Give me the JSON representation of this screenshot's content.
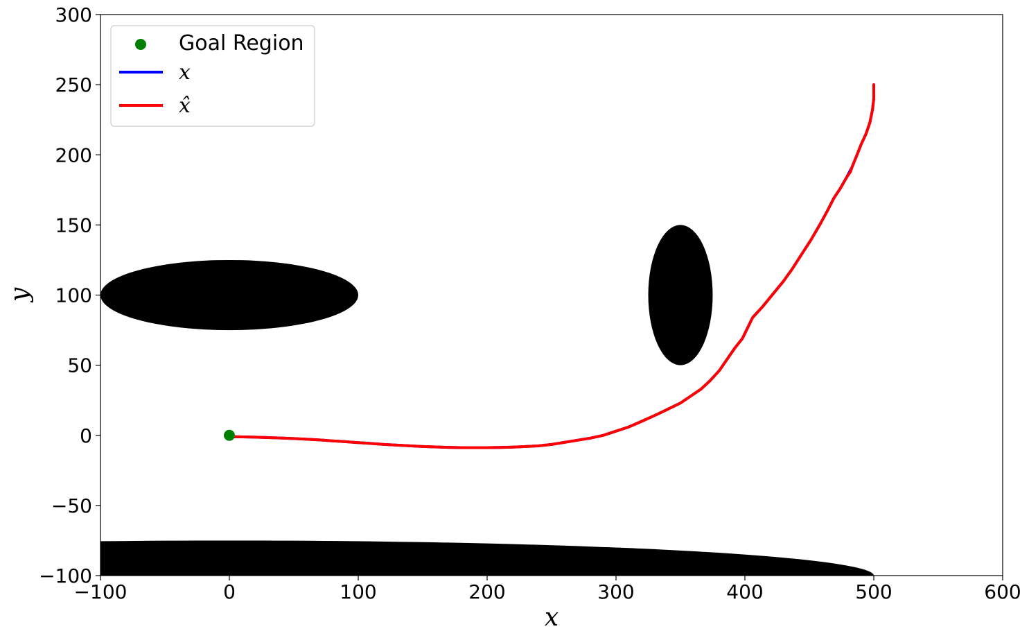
{
  "chart_data": {
    "type": "line",
    "xlabel": "x",
    "ylabel": "y",
    "xlim": [
      -100,
      600
    ],
    "ylim": [
      -100,
      300
    ],
    "x_ticks": [
      -100,
      0,
      100,
      200,
      300,
      400,
      500,
      600
    ],
    "y_ticks": [
      -100,
      -50,
      0,
      50,
      100,
      150,
      200,
      250,
      300
    ],
    "x_tick_labels": [
      "−100",
      "0",
      "100",
      "200",
      "300",
      "400",
      "500",
      "600"
    ],
    "y_tick_labels": [
      "−100",
      "−50",
      "0",
      "50",
      "100",
      "150",
      "200",
      "250",
      "300"
    ],
    "grid": false,
    "legend_position": "top-left",
    "legend": [
      {
        "label": "Goal Region",
        "marker": "dot",
        "color": "#008000"
      },
      {
        "label": "x",
        "marker": "line",
        "color": "#0000ff"
      },
      {
        "label": "x̂",
        "marker": "line",
        "color": "#ff0000"
      }
    ],
    "obstacles": [
      {
        "shape": "ellipse",
        "center": [
          0,
          100
        ],
        "radius_x": 100,
        "radius_y": 25,
        "color": "#000000"
      },
      {
        "shape": "ellipse",
        "center": [
          350,
          100
        ],
        "radius_x": 25,
        "radius_y": 50,
        "color": "#000000"
      },
      {
        "shape": "ellipse",
        "center": [
          0,
          -100
        ],
        "radius_x": 500,
        "radius_y": 25,
        "color": "#000000"
      }
    ],
    "goal": {
      "x": 0,
      "y": 0,
      "color": "#008000"
    },
    "series": [
      {
        "name": "x",
        "color": "#0000ff",
        "x": [
          500,
          500,
          499,
          497,
          494,
          490,
          487,
          483,
          479,
          474,
          469,
          464,
          458,
          451,
          444,
          437,
          430,
          422,
          414,
          406,
          398,
          392,
          386,
          380,
          373,
          366,
          358,
          350,
          341,
          332,
          320,
          310,
          300,
          290,
          280,
          270,
          260,
          250,
          240,
          230,
          220,
          210,
          200,
          190,
          180,
          170,
          160,
          150,
          140,
          130,
          120,
          110,
          100,
          90,
          80,
          70,
          60,
          50,
          40,
          30,
          20,
          10,
          3
        ],
        "y": [
          250,
          240,
          232,
          223,
          215,
          207,
          200,
          191,
          184,
          176,
          169,
          160,
          150,
          139,
          129,
          119,
          110,
          101,
          92,
          84,
          69,
          62,
          54,
          46,
          39,
          33,
          28,
          23,
          19,
          15,
          10,
          6,
          3,
          0,
          -2,
          -3.5,
          -5,
          -6.5,
          -7.5,
          -8,
          -8.4,
          -8.7,
          -8.8,
          -8.8,
          -8.8,
          -8.6,
          -8.3,
          -8,
          -7.5,
          -7,
          -6.5,
          -5.8,
          -5.2,
          -4.5,
          -4,
          -3.3,
          -2.8,
          -2.3,
          -1.9,
          -1.6,
          -1.3,
          -1.1,
          -1
        ]
      },
      {
        "name": "x̂",
        "color": "#ff0000",
        "x": [
          500,
          500,
          499,
          497,
          494,
          490,
          487,
          483,
          482,
          479,
          474,
          469,
          464,
          458,
          451,
          444,
          437,
          430,
          422,
          414,
          406,
          398,
          392,
          386,
          380,
          373,
          366,
          358,
          350,
          341,
          332,
          320,
          310,
          300,
          290,
          280,
          270,
          260,
          250,
          240,
          230,
          220,
          210,
          200,
          190,
          180,
          170,
          160,
          150,
          140,
          130,
          120,
          110,
          100,
          90,
          80,
          70,
          60,
          50,
          40,
          30,
          20,
          10,
          3
        ],
        "y": [
          250,
          240,
          232,
          223,
          215,
          207,
          200,
          191,
          188,
          184,
          176,
          169,
          160,
          150,
          139,
          129,
          119,
          110,
          101,
          92,
          84,
          69,
          62,
          54,
          46,
          39,
          33,
          28,
          23,
          19,
          15,
          10,
          6,
          3,
          0,
          -2,
          -3.5,
          -5,
          -6.5,
          -7.5,
          -8,
          -8.4,
          -8.7,
          -8.8,
          -8.8,
          -8.8,
          -8.6,
          -8.3,
          -8,
          -7.5,
          -7,
          -6.5,
          -5.8,
          -5.2,
          -4.5,
          -4,
          -3.3,
          -2.8,
          -2.3,
          -1.9,
          -1.6,
          -1.3,
          -1.1,
          -1
        ]
      }
    ]
  }
}
